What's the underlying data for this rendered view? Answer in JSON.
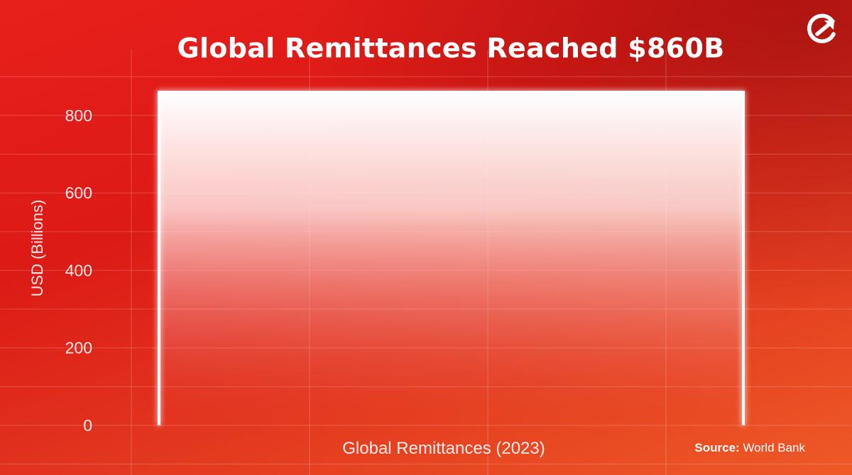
{
  "title": "Global Remittances Reached $860B",
  "source": {
    "label": "Source:",
    "value": "World Bank"
  },
  "logo_icon": "circle-arrow-logo-icon",
  "colors": {
    "background": "#e8201c",
    "accent": "#ffffff"
  },
  "chart_data": {
    "type": "bar",
    "categories": [
      ""
    ],
    "values": [
      860
    ],
    "xlabel": "Global Remittances (2023)",
    "ylabel": "USD (Billions)",
    "ylim": [
      0,
      860
    ],
    "yticks": [
      0,
      200,
      400,
      600,
      800
    ],
    "grid": true
  }
}
